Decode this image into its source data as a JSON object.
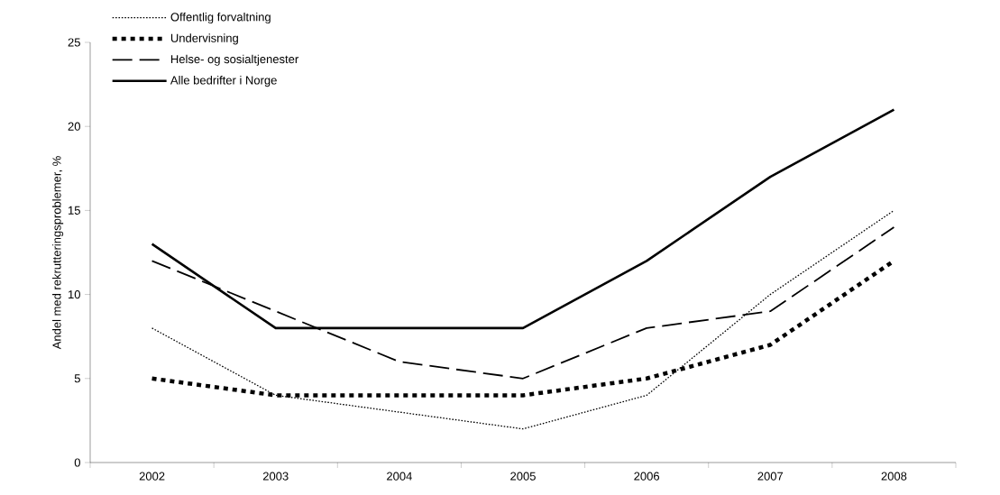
{
  "chart_data": {
    "type": "line",
    "ylabel": "Andel med rekrutteringsproblemer, %",
    "categories": [
      "2002",
      "2003",
      "2004",
      "2005",
      "2006",
      "2007",
      "2008"
    ],
    "series": [
      {
        "name": "Offentlig forvaltning",
        "color": "#000000",
        "line_style": "dotted",
        "values": [
          8,
          4,
          3,
          2,
          4,
          10,
          15
        ]
      },
      {
        "name": "Undervisning",
        "color": "#000000",
        "line_style": "dotted",
        "values": [
          5,
          4,
          4,
          4,
          5,
          7,
          12
        ]
      },
      {
        "name": "Helse- og sosialtjenester",
        "color": "#000000",
        "line_style": "dashed",
        "values": [
          12,
          9,
          6,
          5,
          8,
          9,
          14
        ]
      },
      {
        "name": "Alle bedrifter i Norge",
        "color": "#000000",
        "line_style": "solid",
        "values": [
          13,
          8,
          8,
          8,
          12,
          17,
          21
        ]
      }
    ],
    "ylim": [
      0,
      25
    ],
    "yticks": [
      0,
      5,
      10,
      15,
      20,
      25
    ],
    "grid": false,
    "legend": "top left",
    "marker": "none"
  }
}
